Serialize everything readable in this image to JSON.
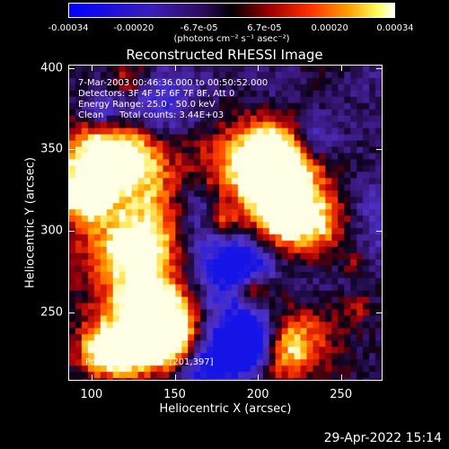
{
  "colorbar": {
    "tick_labels": [
      "-0.00034",
      "-0.00020",
      "-6.7e-05",
      "6.7e-05",
      "0.00020",
      "0.00034"
    ],
    "unit_label": "(photons cm⁻² s⁻¹ asec⁻²)"
  },
  "plot": {
    "title": "Reconstructed RHESSI Image",
    "time_range": "7-Mar-2003 00:46:36.000 to 00:50:52.000",
    "detectors": "Detectors: 3F 4F 5F 6F 7F 8F, Att 0",
    "energy_range": "Energy Range: 25.0 - 50.0 keV",
    "clean_label": "Clean",
    "total_counts": "Total counts: 3.44E+03",
    "peak_position": "Position of Peak = [201,397]",
    "xlabel": "Heliocentric X (arcsec)",
    "ylabel": "Heliocentric Y (arcsec)",
    "x_ticks": [
      "100",
      "150",
      "200",
      "250"
    ],
    "y_ticks": [
      "250",
      "300",
      "350",
      "400"
    ],
    "x_tick_values": [
      100,
      150,
      200,
      250
    ],
    "y_tick_values": [
      250,
      300,
      350,
      400
    ],
    "xlim": [
      86,
      275
    ],
    "ylim": [
      208,
      402
    ]
  },
  "footer": {
    "timestamp": "29-Apr-2022 15:14"
  }
}
